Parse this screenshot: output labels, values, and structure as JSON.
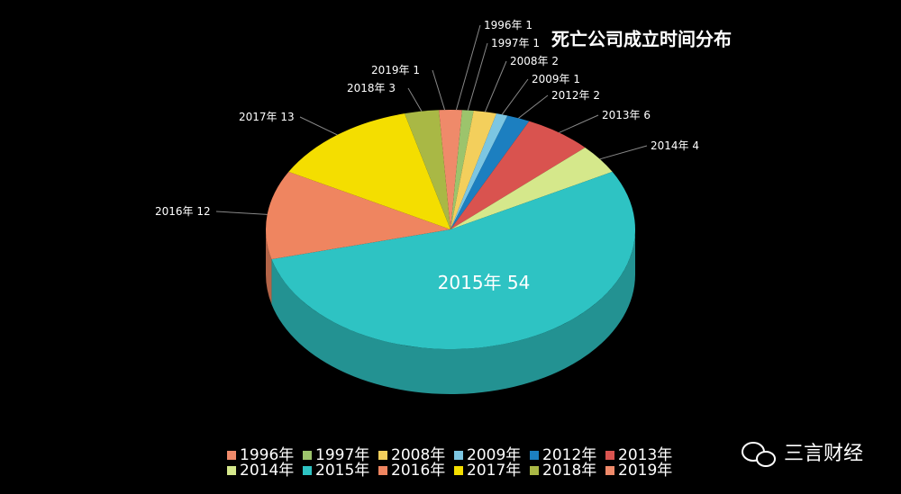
{
  "chart_data": {
    "type": "pie3d",
    "title": "死亡公司成立时间分布",
    "categories": [
      "1996年",
      "1997年",
      "2008年",
      "2009年",
      "2012年",
      "2013年",
      "2014年",
      "2015年",
      "2016年",
      "2017年",
      "2018年",
      "2019年"
    ],
    "values": [
      1,
      1,
      2,
      1,
      2,
      6,
      4,
      54,
      12,
      13,
      3,
      1
    ],
    "colors": [
      "#ef8a6a",
      "#9cc46c",
      "#f3cf5c",
      "#7cc6e2",
      "#1c7fc0",
      "#d9534f",
      "#d5e88b",
      "#2ec3c3",
      "#ef8560",
      "#f4de00",
      "#a9b845",
      "#ef8a6a"
    ],
    "annotation": "三言财经"
  }
}
